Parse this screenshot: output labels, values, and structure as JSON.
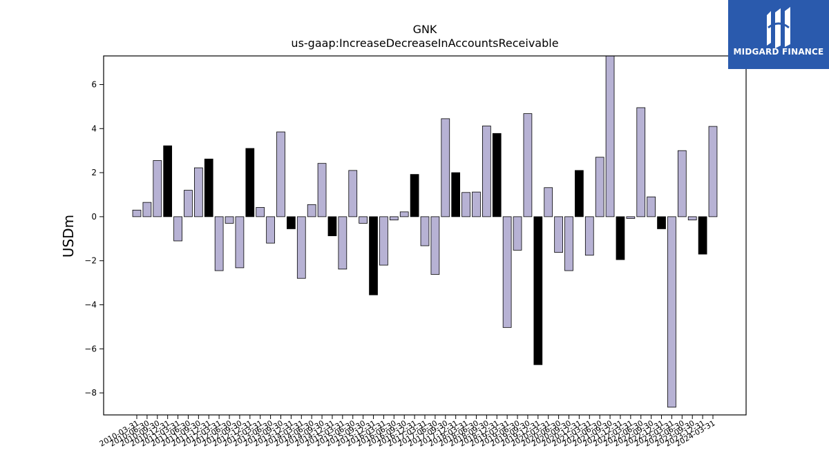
{
  "chart_data": {
    "type": "bar",
    "title": "GNK",
    "subtitle": "us-gaap:IncreaseDecreaseInAccountsReceivable",
    "xlabel": "",
    "ylabel": "USDm",
    "ylim": [
      -9.0,
      7.3
    ],
    "yticks": [
      -8,
      -6,
      -4,
      -2,
      0,
      2,
      4,
      6
    ],
    "ytick_labels": [
      "−8",
      "−6",
      "−4",
      "−2",
      "0",
      "2",
      "4",
      "6"
    ],
    "grid": false,
    "colors": {
      "quarter": "#b7b2d4",
      "year_end": "#000000",
      "edge": "#000000"
    },
    "categories": [
      "2010-03-31",
      "2010-06-30",
      "2010-09-30",
      "2010-12-31",
      "2011-03-31",
      "2011-06-30",
      "2011-09-30",
      "2011-12-31",
      "2012-03-31",
      "2012-06-30",
      "2012-09-30",
      "2012-12-31",
      "2013-03-31",
      "2013-06-30",
      "2013-09-30",
      "2013-12-31",
      "2014-03-31",
      "2014-06-30",
      "2014-09-30",
      "2014-12-31",
      "2015-03-31",
      "2015-06-30",
      "2015-09-30",
      "2015-12-31",
      "2016-03-31",
      "2016-06-30",
      "2016-09-30",
      "2016-12-31",
      "2017-03-31",
      "2017-06-30",
      "2017-09-30",
      "2017-12-31",
      "2018-03-31",
      "2018-06-30",
      "2018-09-30",
      "2018-12-31",
      "2019-03-31",
      "2019-06-30",
      "2019-09-30",
      "2019-12-31",
      "2020-03-31",
      "2020-06-30",
      "2020-09-30",
      "2020-12-31",
      "2021-03-31",
      "2021-06-30",
      "2021-09-30",
      "2021-12-31",
      "2022-03-31",
      "2022-06-30",
      "2022-09-30",
      "2022-12-31",
      "2023-03-31",
      "2023-06-30",
      "2023-09-30",
      "2023-12-31",
      "2024-03-31"
    ],
    "values": [
      0.3,
      0.65,
      2.55,
      3.22,
      -1.1,
      1.2,
      2.22,
      2.62,
      -2.45,
      -0.3,
      -2.32,
      3.1,
      0.42,
      -1.2,
      3.85,
      -0.55,
      -2.8,
      0.55,
      2.42,
      -0.87,
      -2.38,
      2.1,
      -0.3,
      -3.55,
      -2.2,
      -0.15,
      0.22,
      1.92,
      -1.32,
      -2.62,
      4.45,
      2.0,
      1.1,
      1.12,
      4.12,
      3.78,
      -5.03,
      -1.52,
      4.68,
      -6.72,
      1.32,
      -1.62,
      -2.45,
      2.1,
      -1.75,
      2.7,
      7.3,
      -1.95,
      -0.08,
      4.95,
      0.9,
      -0.55,
      -8.65,
      3.0,
      -0.15,
      -1.7,
      4.1
    ],
    "year_end_every": 4,
    "year_end_offset": 3
  },
  "logo": {
    "name": "MIDGARD FINANCE",
    "bg": "#2a5aad"
  }
}
